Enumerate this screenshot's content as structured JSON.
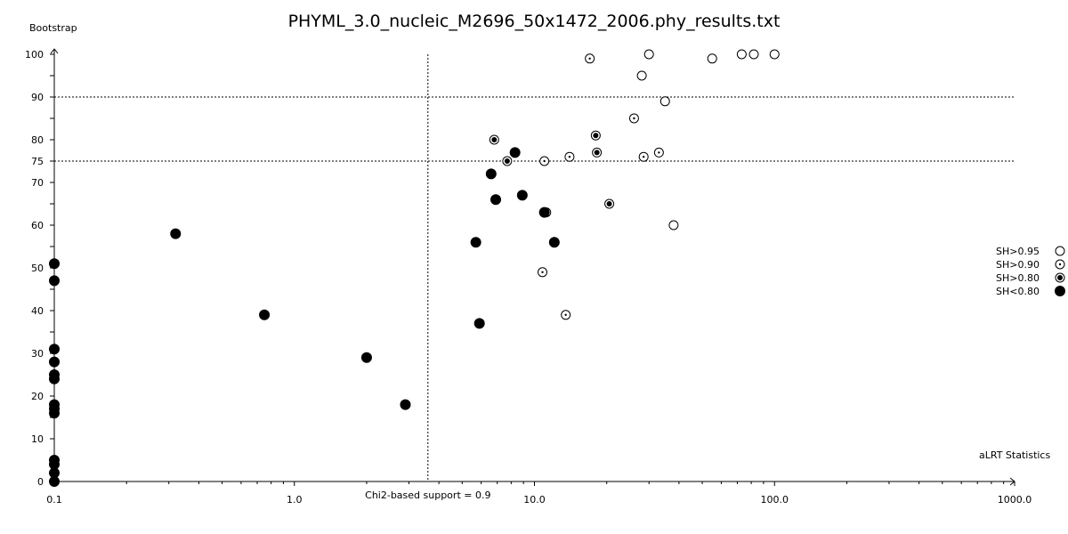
{
  "chart_data": {
    "type": "scatter",
    "title": "PHYML_3.0_nucleic_M2696_50x1472_2006.phy_results.txt",
    "xlabel": "aLRT Statistics",
    "ylabel": "Bootstrap",
    "x_scale": "log",
    "xlim": [
      0.1,
      1000
    ],
    "ylim": [
      0,
      100
    ],
    "x_tick_labels": [
      "0.1",
      "1.0",
      "10.0",
      "100.0",
      "1000.0"
    ],
    "y_ticks": [
      0,
      10,
      20,
      30,
      40,
      50,
      60,
      70,
      75,
      80,
      90,
      100
    ],
    "reference_lines": {
      "horizontal": [
        75,
        90
      ],
      "vertical": {
        "x": 3.6,
        "label": "Chi2-based support = 0.9"
      }
    },
    "legend": {
      "position": "right",
      "entries": [
        {
          "label": "SH>0.95",
          "marker": "open"
        },
        {
          "label": "SH>0.90",
          "marker": "dot"
        },
        {
          "label": "SH>0.80",
          "marker": "ring"
        },
        {
          "label": "SH<0.80",
          "marker": "filled"
        }
      ]
    },
    "series": [
      {
        "marker": "open",
        "points": [
          [
            30,
            100
          ],
          [
            55,
            99
          ],
          [
            73,
            100
          ],
          [
            82,
            100
          ],
          [
            100,
            100
          ],
          [
            28,
            95
          ],
          [
            35,
            89
          ],
          [
            38,
            60
          ]
        ]
      },
      {
        "marker": "dot",
        "points": [
          [
            17,
            99
          ],
          [
            26,
            85
          ],
          [
            33,
            77
          ],
          [
            28.5,
            76
          ],
          [
            14,
            76
          ],
          [
            11,
            75
          ],
          [
            11.2,
            63
          ],
          [
            13.5,
            39
          ],
          [
            10.8,
            49
          ]
        ]
      },
      {
        "marker": "ring",
        "points": [
          [
            6.8,
            80
          ],
          [
            18,
            81
          ],
          [
            18.2,
            77
          ],
          [
            7.7,
            75
          ],
          [
            20.5,
            65
          ]
        ]
      },
      {
        "marker": "filled",
        "points": [
          [
            0.1,
            51
          ],
          [
            0.1,
            47
          ],
          [
            0.1,
            31
          ],
          [
            0.1,
            28
          ],
          [
            0.1,
            25
          ],
          [
            0.1,
            24
          ],
          [
            0.1,
            18
          ],
          [
            0.1,
            17
          ],
          [
            0.1,
            16
          ],
          [
            0.1,
            5
          ],
          [
            0.1,
            4
          ],
          [
            0.1,
            2
          ],
          [
            0.1,
            0
          ],
          [
            0.32,
            58
          ],
          [
            0.75,
            39
          ],
          [
            2.0,
            29
          ],
          [
            2.9,
            18
          ],
          [
            5.7,
            56
          ],
          [
            5.9,
            37
          ],
          [
            6.6,
            72
          ],
          [
            6.9,
            66
          ],
          [
            8.3,
            77
          ],
          [
            8.9,
            67
          ],
          [
            11.0,
            63
          ],
          [
            12.1,
            56
          ]
        ]
      }
    ]
  }
}
